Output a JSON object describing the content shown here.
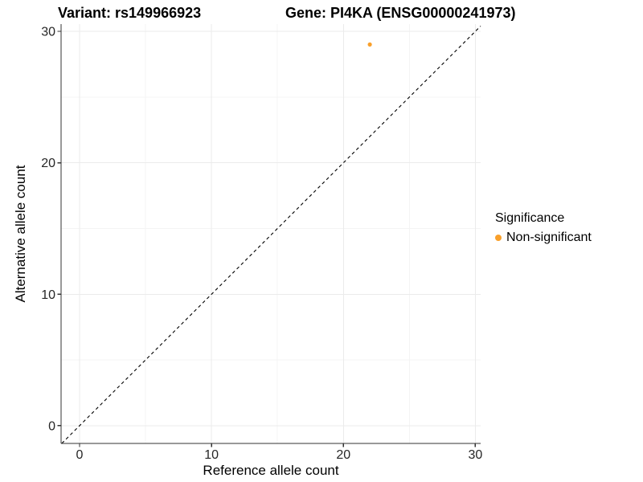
{
  "chart_data": {
    "type": "scatter",
    "title_left": "Variant: rs149966923",
    "title_right": "Gene: PI4KA (ENSG00000241973)",
    "xlabel": "Reference allele count",
    "ylabel": "Alternative allele count",
    "xlim": [
      -1.4,
      30.4
    ],
    "ylim": [
      -1.35,
      30.55
    ],
    "xticks": [
      0,
      10,
      20,
      30
    ],
    "yticks": [
      0,
      10,
      20,
      30
    ],
    "xminor": [
      5,
      15,
      25
    ],
    "yminor": [
      5,
      15,
      25
    ],
    "grid": true,
    "points": [
      {
        "x": 22,
        "y": 29,
        "series": "Non-significant"
      }
    ],
    "abline": {
      "slope": 1,
      "intercept": 0,
      "style": "dashed"
    },
    "legend": {
      "title": "Significance",
      "position": "right",
      "items": [
        {
          "label": "Non-significant",
          "color": "#F9A02B"
        }
      ]
    },
    "colors": {
      "point": "#F9A02B",
      "axis": "#333333",
      "tick_text": "#262626",
      "grid_major": "#EBEBEB",
      "grid_minor": "#F4F4F4",
      "abline": "#000000"
    }
  }
}
